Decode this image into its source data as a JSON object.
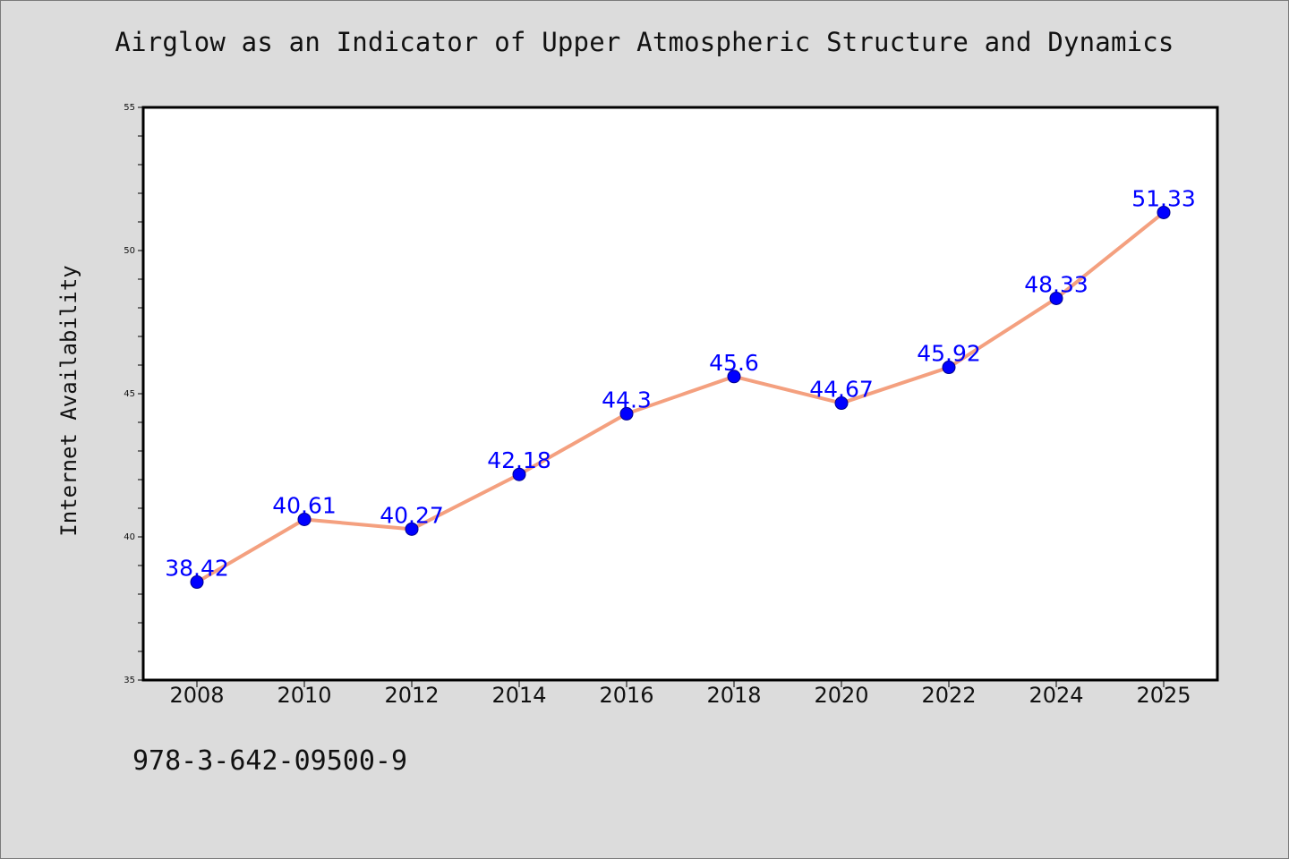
{
  "chart_data": {
    "type": "line",
    "title": "Airglow as an Indicator of Upper Atmospheric Structure and Dynamics",
    "xlabel": "",
    "ylabel": "Internet Availability",
    "categories": [
      "2008",
      "2010",
      "2012",
      "2014",
      "2016",
      "2018",
      "2020",
      "2022",
      "2024",
      "2025"
    ],
    "series": [
      {
        "values": [
          38.42,
          40.61,
          40.27,
          42.18,
          44.3,
          45.6,
          44.67,
          45.92,
          48.33,
          51.33
        ],
        "labels": [
          "38.42",
          "40.61",
          "40.27",
          "42.18",
          "44.3",
          "45.6",
          "44.67",
          "45.92",
          "48.33",
          "51.33"
        ]
      }
    ],
    "ylim": [
      35,
      55
    ],
    "yticks": [
      35,
      40,
      45,
      50,
      55
    ],
    "grid": false,
    "legend": "none",
    "colors": {
      "line": "#f4a07f",
      "marker": "#0000ff",
      "data_label": "#0000ff",
      "background": "#dcdcdc",
      "plot_area": "#ffffff"
    }
  },
  "footnote": "978-3-642-09500-9"
}
